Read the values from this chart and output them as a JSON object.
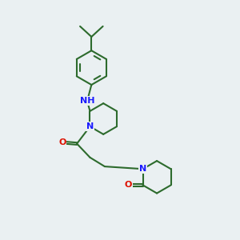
{
  "bg_color": "#eaf0f2",
  "bond_color": "#2d6b2d",
  "nitrogen_color": "#1a1aff",
  "oxygen_color": "#dd1100",
  "bond_lw": 1.5,
  "font_size": 8.0,
  "xlim": [
    0,
    10
  ],
  "ylim": [
    0,
    10
  ]
}
